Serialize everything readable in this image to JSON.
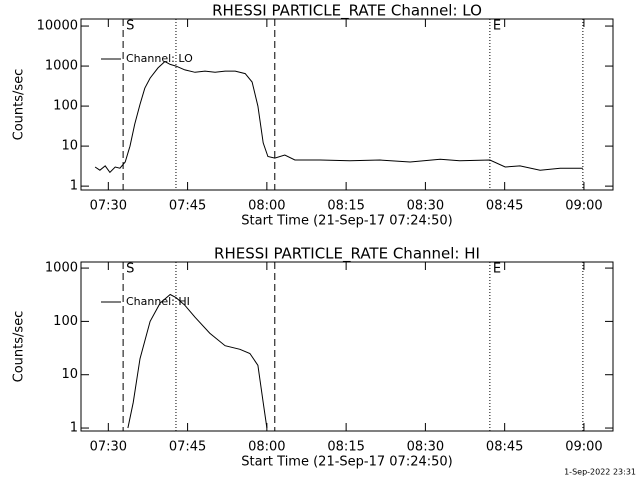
{
  "chart_data": [
    {
      "type": "line",
      "title": "RHESSI PARTICLE_RATE Channel: LO",
      "xlabel": "Start Time (21-Sep-17 07:24:50)",
      "ylabel": "Counts/sec",
      "yscale": "log",
      "xlim": [
        444.83,
        545.5
      ],
      "ylim": [
        0.8,
        15000
      ],
      "xticks": [
        {
          "value": 450,
          "label": "07:30"
        },
        {
          "value": 465,
          "label": "07:45"
        },
        {
          "value": 480,
          "label": "08:00"
        },
        {
          "value": 495,
          "label": "08:15"
        },
        {
          "value": 510,
          "label": "08:30"
        },
        {
          "value": 525,
          "label": "08:45"
        },
        {
          "value": 540,
          "label": "09:00"
        }
      ],
      "yticks": [
        1,
        10,
        100,
        1000,
        10000
      ],
      "legend": "upper left",
      "x": [
        447.5,
        448.4,
        449.4,
        450.3,
        451.3,
        452.2,
        453.2,
        454.1,
        455.0,
        456.0,
        456.9,
        457.9,
        459.4,
        460.7,
        461.7,
        462.8,
        464.5,
        466.4,
        468.3,
        470.2,
        472.1,
        474.0,
        475.9,
        477.2,
        478.3,
        479.3,
        480.2,
        481.5,
        483.4,
        485.3,
        490.1,
        495.7,
        501.4,
        507.1,
        512.8,
        516.5,
        522.2,
        525.1,
        527.9,
        531.7,
        535.5,
        539.8
      ],
      "series": [
        {
          "name": "Channel: LO",
          "color": "#000000",
          "values": [
            3,
            2.5,
            3.2,
            2.2,
            3,
            2.8,
            4,
            10,
            35,
            110,
            280,
            500,
            900,
            1300,
            1100,
            1000,
            800,
            700,
            750,
            700,
            750,
            750,
            650,
            400,
            100,
            12,
            5.5,
            5,
            6,
            4.5,
            4.5,
            4.3,
            4.5,
            4,
            4.7,
            4.3,
            4.5,
            3,
            3.2,
            2.5,
            2.8,
            2.8
          ]
        }
      ],
      "markers": [
        {
          "x": 452.8,
          "style": "dashed",
          "label": "S"
        },
        {
          "x": 462.8,
          "style": "dotted"
        },
        {
          "x": 481.5,
          "style": "dashed"
        },
        {
          "x": 522.2,
          "style": "dotted",
          "label": "E"
        },
        {
          "x": 539.8,
          "style": "dotted"
        }
      ]
    },
    {
      "type": "line",
      "title": "RHESSI PARTICLE_RATE Channel: HI",
      "xlabel": "Start Time (21-Sep-17 07:24:50)",
      "ylabel": "Counts/sec",
      "yscale": "log",
      "xlim": [
        444.83,
        545.5
      ],
      "ylim": [
        0.88,
        1300
      ],
      "xticks": [
        {
          "value": 450,
          "label": "07:30"
        },
        {
          "value": 465,
          "label": "07:45"
        },
        {
          "value": 480,
          "label": "08:00"
        },
        {
          "value": 495,
          "label": "08:15"
        },
        {
          "value": 510,
          "label": "08:30"
        },
        {
          "value": 525,
          "label": "08:45"
        },
        {
          "value": 540,
          "label": "09:00"
        }
      ],
      "yticks": [
        1,
        10,
        100,
        1000
      ],
      "legend": "upper left",
      "x": [
        453.7,
        454.7,
        456.0,
        457.9,
        459.8,
        461.7,
        462.8,
        464.5,
        466.4,
        469.2,
        472.1,
        474.9,
        476.8,
        478.3,
        479.3,
        480.0
      ],
      "series": [
        {
          "name": "Channel: HI",
          "color": "#000000",
          "values": [
            1,
            3,
            20,
            100,
            220,
            320,
            280,
            200,
            120,
            60,
            35,
            30,
            25,
            15,
            3,
            1
          ]
        }
      ],
      "markers": [
        {
          "x": 452.8,
          "style": "dashed",
          "label": "S"
        },
        {
          "x": 462.8,
          "style": "dotted"
        },
        {
          "x": 481.5,
          "style": "dashed"
        },
        {
          "x": 522.2,
          "style": "dotted",
          "label": "E"
        },
        {
          "x": 539.8,
          "style": "dotted"
        }
      ]
    }
  ],
  "footer": "1-Sep-2022 23:31"
}
